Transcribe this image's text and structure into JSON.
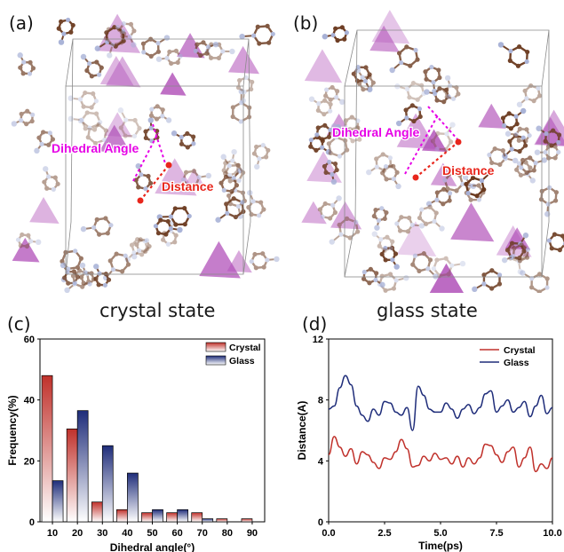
{
  "panels": {
    "a": {
      "label": "(a)",
      "caption": "crystal state",
      "annotations": {
        "dihedral": "Dihedral Angle",
        "distance": "Distance"
      }
    },
    "b": {
      "label": "(b)",
      "caption": "glass state",
      "annotations": {
        "dihedral": "Dihedral Angle",
        "distance": "Distance"
      }
    },
    "c": {
      "label": "(c)"
    },
    "d": {
      "label": "(d)"
    }
  },
  "colors": {
    "crystal": "#c0312b",
    "glass": "#1f2d7a",
    "magenta": "#e600e6",
    "red_label": "#e8261c",
    "carbon": "#6b3a1f",
    "nitrogen": "#a6b0d6",
    "tetrahedron": "#b04fb8"
  },
  "chart_data": [
    {
      "type": "bar",
      "xlabel": "Dihedral angle(°)",
      "ylabel": "Frequency(%)",
      "categories": [
        "10",
        "20",
        "30",
        "40",
        "50",
        "60",
        "70",
        "80",
        "90"
      ],
      "ylim": [
        0,
        60
      ],
      "yticks": [
        "0",
        "20",
        "40",
        "60"
      ],
      "legend_position": "top-right",
      "series": [
        {
          "name": "Crystal",
          "values": [
            48,
            30.5,
            6.5,
            4,
            3,
            3,
            3,
            1,
            1
          ]
        },
        {
          "name": "Glass",
          "values": [
            13.5,
            36.5,
            25,
            16,
            4,
            4,
            1,
            0,
            0
          ]
        }
      ]
    },
    {
      "type": "line",
      "xlabel": "Time(ps)",
      "ylabel": "Distance(A)",
      "xlim": [
        0,
        10
      ],
      "ylim": [
        0,
        12
      ],
      "xticks": [
        "0.0",
        "2.5",
        "5.0",
        "7.5",
        "10.0"
      ],
      "yticks": [
        "0",
        "4",
        "8",
        "12"
      ],
      "legend_position": "top-right",
      "x": [
        0,
        0.25,
        0.5,
        0.75,
        1,
        1.25,
        1.5,
        1.75,
        2,
        2.25,
        2.5,
        2.75,
        3,
        3.25,
        3.5,
        3.75,
        4,
        4.25,
        4.5,
        4.75,
        5,
        5.25,
        5.5,
        5.75,
        6,
        6.25,
        6.5,
        6.75,
        7,
        7.25,
        7.5,
        7.75,
        8,
        8.25,
        8.5,
        8.75,
        9,
        9.25,
        9.5,
        9.75,
        10
      ],
      "series": [
        {
          "name": "Crystal",
          "values": [
            4.4,
            5.6,
            4.9,
            4.3,
            4.8,
            3.8,
            4.6,
            4.4,
            3.9,
            3.5,
            4.2,
            4.1,
            4.6,
            5.4,
            4.8,
            3.6,
            3.7,
            4.3,
            4.0,
            4.5,
            4.1,
            4.2,
            3.8,
            4.3,
            3.6,
            4.2,
            3.8,
            4.2,
            5.1,
            5.0,
            4.4,
            3.9,
            4.6,
            4.9,
            3.6,
            4.2,
            4.9,
            3.3,
            3.8,
            3.5,
            4.2
          ]
        },
        {
          "name": "Glass",
          "values": [
            7.4,
            7.6,
            8.8,
            9.6,
            9.0,
            7.6,
            7.0,
            6.6,
            7.4,
            7.0,
            7.9,
            7.8,
            7.2,
            7.0,
            7.5,
            6.0,
            8.9,
            8.3,
            7.4,
            7.2,
            7.2,
            7.8,
            7.4,
            6.8,
            7.4,
            7.7,
            7.1,
            7.5,
            8.4,
            8.6,
            7.2,
            7.6,
            8.0,
            7.2,
            7.5,
            7.9,
            6.9,
            7.6,
            8.3,
            7.1,
            7.5
          ]
        }
      ]
    }
  ]
}
